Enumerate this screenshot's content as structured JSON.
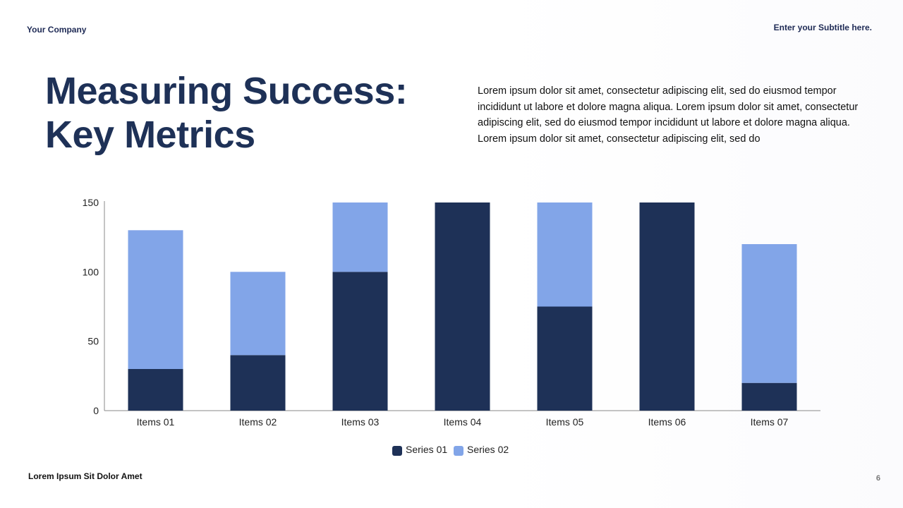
{
  "header": {
    "company": "Your Company",
    "subtitle": "Enter your Subtitle here."
  },
  "title": {
    "line1": "Measuring Success:",
    "line2": "Key Metrics"
  },
  "body": {
    "text": "Lorem ipsum dolor sit amet, consectetur adipiscing elit, sed do eiusmod tempor incididunt ut labore et dolore magna aliqua. Lorem ipsum dolor sit amet, consectetur adipiscing elit, sed do eiusmod tempor incididunt ut labore et dolore magna aliqua. Lorem ipsum dolor sit amet, consectetur adipiscing elit, sed do"
  },
  "footer": {
    "left": "Lorem Ipsum Sit Dolor Amet",
    "page": "6"
  },
  "colors": {
    "series1": "#1e3157",
    "series2": "#82a5e8",
    "axis": "#8a8a8a"
  },
  "chart_data": {
    "type": "bar",
    "stacked": true,
    "title": "",
    "xlabel": "",
    "ylabel": "",
    "ylim": [
      0,
      150
    ],
    "yticks": [
      "0",
      "50",
      "100",
      "150"
    ],
    "grid": false,
    "legend": "bottom-center",
    "categories": [
      "Items 01",
      "Items 02",
      "Items 03",
      "Items 04",
      "Items 05",
      "Items 06",
      "Items 07"
    ],
    "series": [
      {
        "name": "Series 01",
        "values": [
          30,
          40,
          100,
          150,
          75,
          150,
          20
        ]
      },
      {
        "name": "Series 02",
        "values": [
          100,
          60,
          50,
          0,
          75,
          0,
          100
        ]
      }
    ]
  }
}
